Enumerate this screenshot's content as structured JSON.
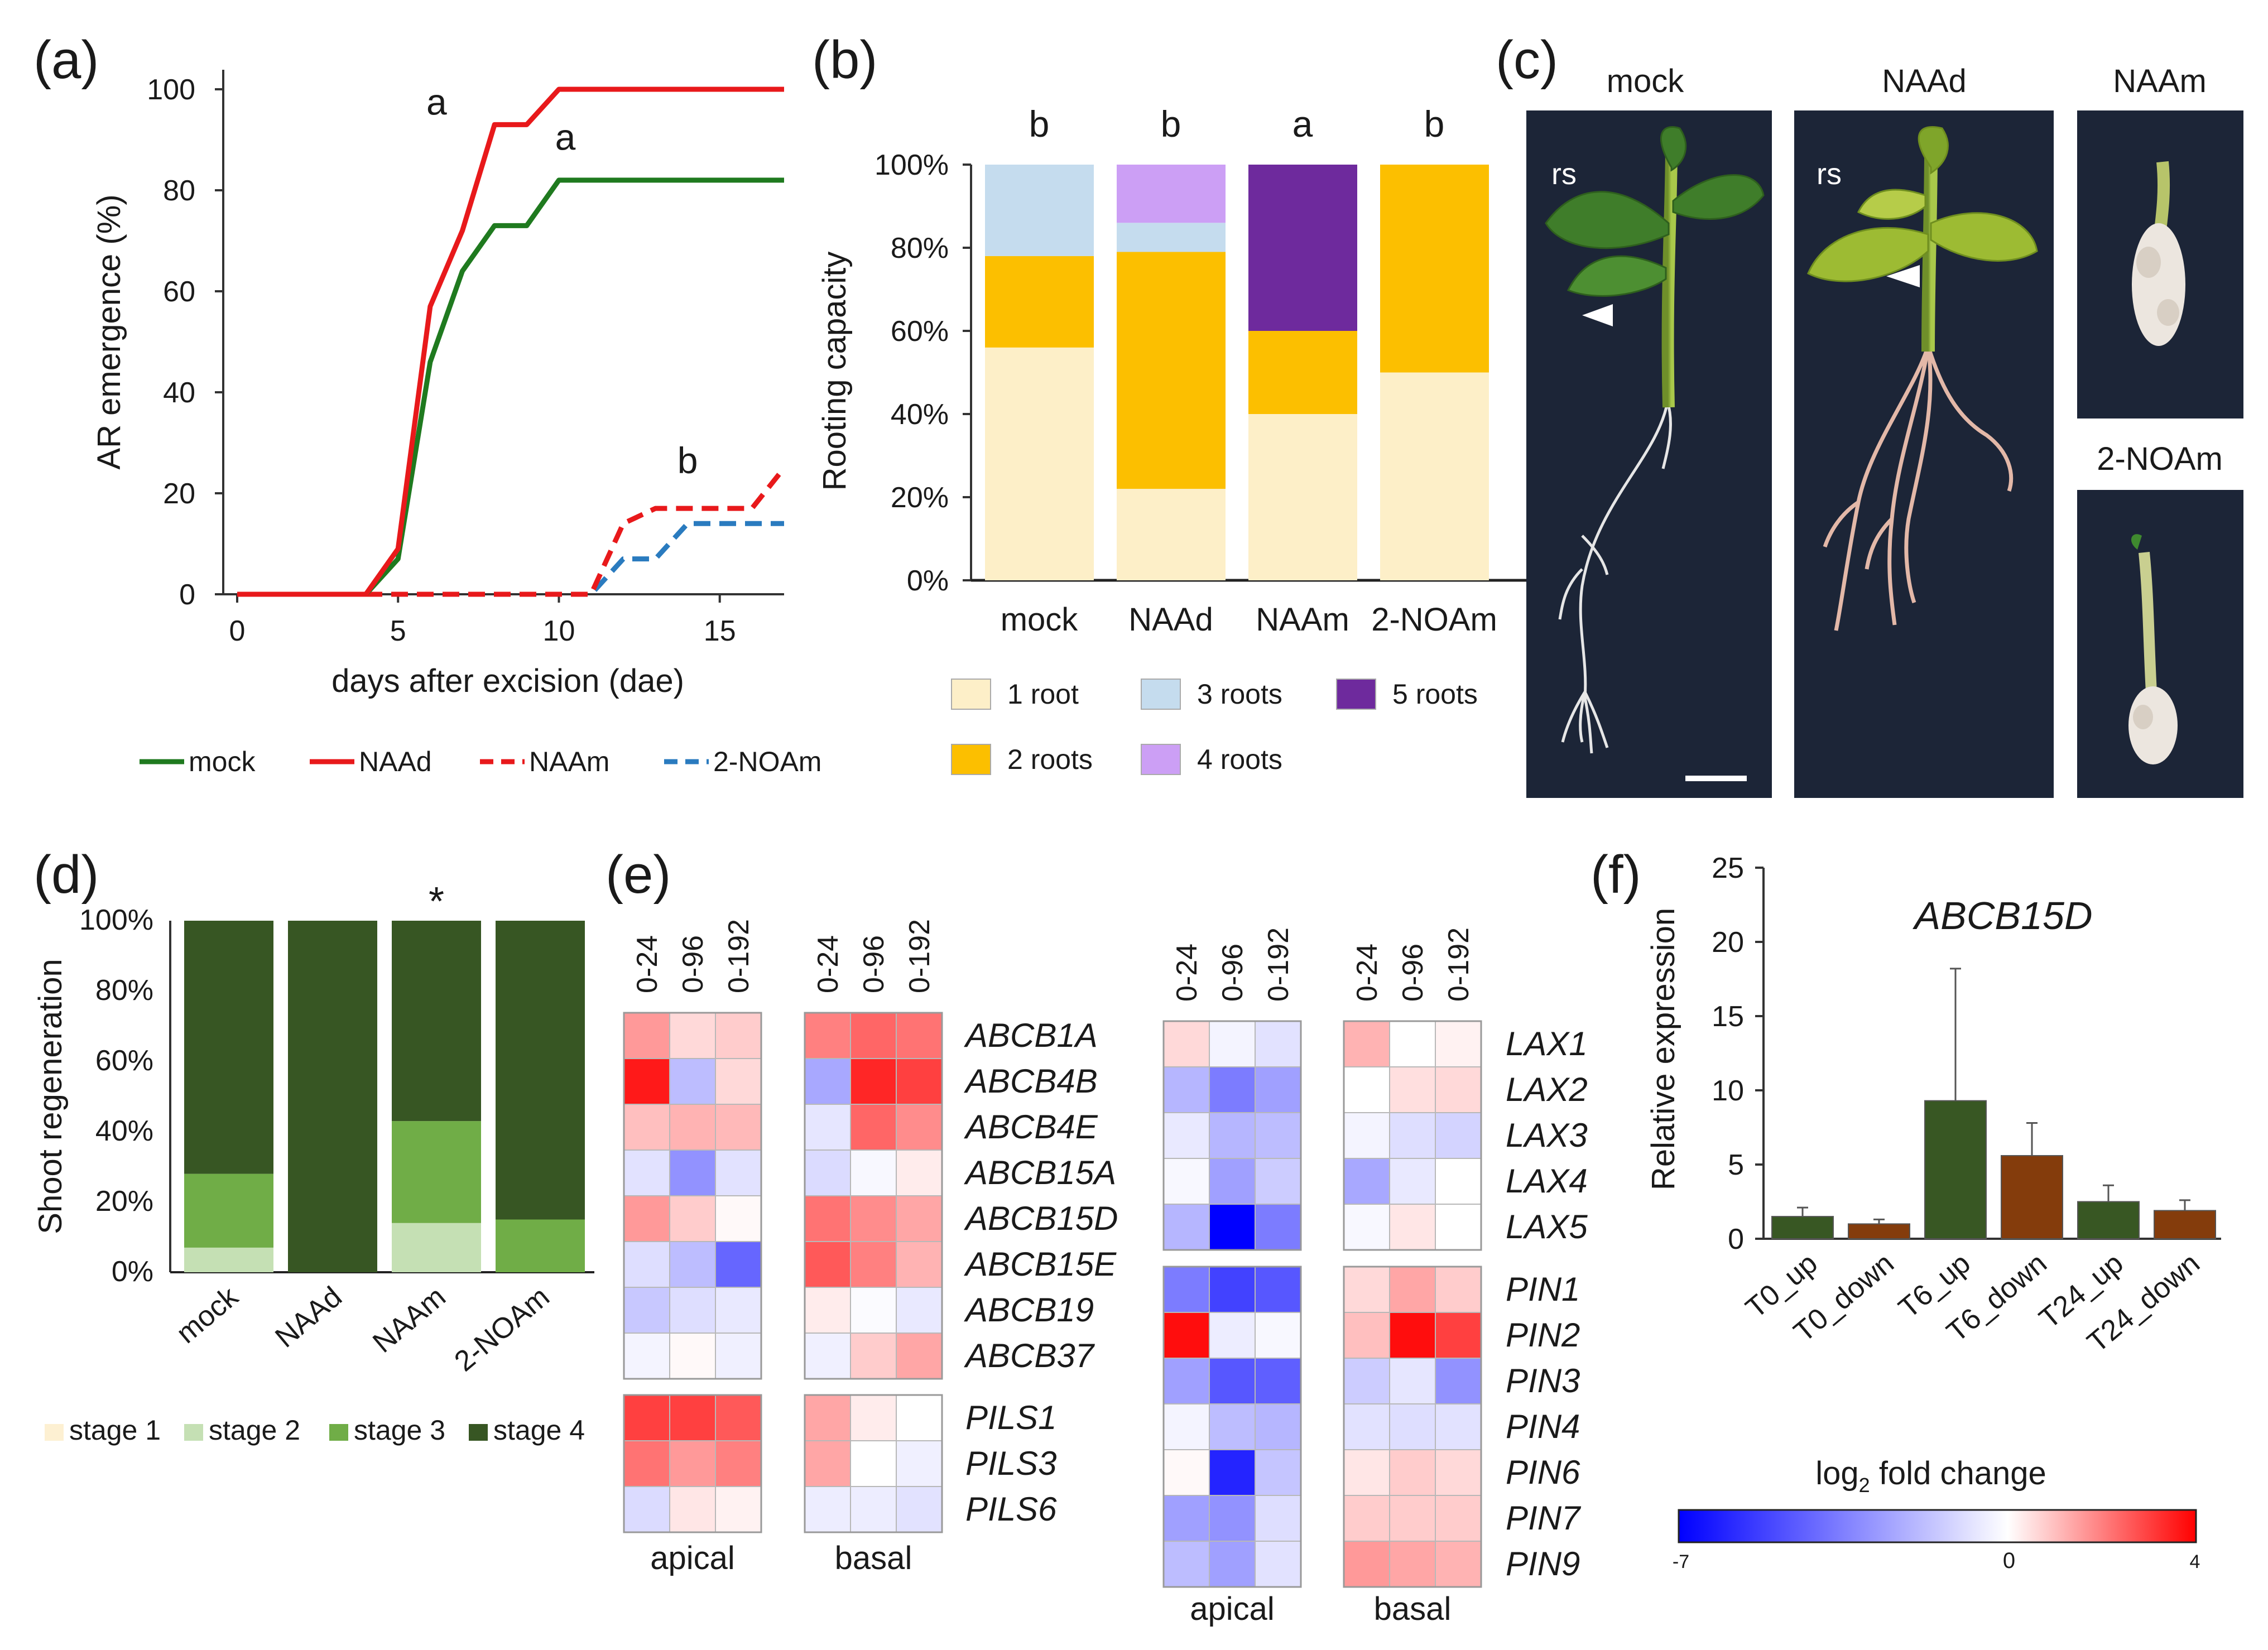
{
  "panels": {
    "a": {
      "label": "(a)",
      "chart_data": {
        "type": "line",
        "xlabel": "days after excision (dae)",
        "ylabel": "AR emergence (%)",
        "xlim": [
          0,
          17
        ],
        "ylim": [
          0,
          100
        ],
        "xticks": [
          "0",
          "5",
          "10",
          "15"
        ],
        "yticks": [
          "0",
          "20",
          "40",
          "60",
          "80",
          "100"
        ],
        "x": [
          0,
          1,
          2,
          3,
          4,
          5,
          6,
          7,
          8,
          9,
          10,
          11,
          12,
          13,
          14,
          15,
          16,
          17
        ],
        "series": [
          {
            "name": "mock",
            "color": "#1f7a1f",
            "dash": false,
            "values": [
              0,
              0,
              0,
              0,
              0,
              7,
              46,
              64,
              73,
              73,
              82,
              82,
              82,
              82,
              82,
              82,
              82,
              82
            ]
          },
          {
            "name": "NAAd",
            "color": "#e8191b",
            "dash": false,
            "values": [
              0,
              0,
              0,
              0,
              0,
              9,
              57,
              72,
              93,
              93,
              100,
              100,
              100,
              100,
              100,
              100,
              100,
              100
            ]
          },
          {
            "name": "NAAm",
            "color": "#e8191b",
            "dash": true,
            "values": [
              0,
              0,
              0,
              0,
              0,
              0,
              0,
              0,
              0,
              0,
              0,
              0,
              14,
              17,
              17,
              17,
              17,
              25
            ]
          },
          {
            "name": "2-NOAm",
            "color": "#2a7bbf",
            "dash": true,
            "values": [
              0,
              0,
              0,
              0,
              0,
              0,
              0,
              0,
              0,
              0,
              0,
              0,
              7,
              7,
              14,
              14,
              14,
              14
            ]
          }
        ],
        "annotations": [
          {
            "text": "a",
            "x": 6.2,
            "y": 95
          },
          {
            "text": "a",
            "x": 10.2,
            "y": 88
          },
          {
            "text": "b",
            "x": 14,
            "y": 24
          }
        ]
      }
    },
    "b": {
      "label": "(b)",
      "chart_data": {
        "type": "bar",
        "stacked": true,
        "ylabel": "Rooting capacity",
        "categories": [
          "mock",
          "NAAd",
          "NAAm",
          "2-NOAm"
        ],
        "yticks": [
          "0%",
          "20%",
          "40%",
          "60%",
          "80%",
          "100%"
        ],
        "ylim": [
          0,
          100
        ],
        "letters": [
          "b",
          "b",
          "a",
          "b"
        ],
        "series": [
          {
            "name": "1 root",
            "color": "#fdefc8",
            "values": [
              56,
              22,
              40,
              50
            ]
          },
          {
            "name": "2 roots",
            "color": "#fcbf00",
            "values": [
              22,
              57,
              20,
              50
            ]
          },
          {
            "name": "3 roots",
            "color": "#c5dcee",
            "values": [
              22,
              7,
              0,
              0
            ]
          },
          {
            "name": "4 roots",
            "color": "#cc9ff5",
            "values": [
              0,
              14,
              0,
              0
            ]
          },
          {
            "name": "5 roots",
            "color": "#6e2a9d",
            "values": [
              0,
              0,
              40,
              0
            ]
          }
        ]
      }
    },
    "c": {
      "label": "(c)",
      "photo_titles": [
        "mock",
        "NAAd",
        "NAAm",
        "2-NOAm"
      ],
      "rs_labels": [
        "rs",
        "rs"
      ]
    },
    "d": {
      "label": "(d)",
      "chart_data": {
        "type": "bar",
        "stacked": true,
        "ylabel": "Shoot regeneration",
        "categories": [
          "mock",
          "NAAd",
          "NAAm",
          "2-NOAm"
        ],
        "yticks": [
          "0%",
          "20%",
          "40%",
          "60%",
          "80%",
          "100%"
        ],
        "ylim": [
          0,
          100
        ],
        "marks": [
          "",
          "",
          "*",
          ""
        ],
        "series": [
          {
            "name": "stage 1",
            "color": "#fdf0d2",
            "values": [
              0,
              0,
              0,
              0
            ]
          },
          {
            "name": "stage 2",
            "color": "#c5e0b4",
            "values": [
              7,
              0,
              14,
              0
            ]
          },
          {
            "name": "stage 3",
            "color": "#70ad47",
            "values": [
              21,
              0,
              29,
              15
            ]
          },
          {
            "name": "stage 4",
            "color": "#375623",
            "values": [
              72,
              100,
              57,
              85
            ]
          }
        ]
      }
    },
    "e": {
      "label": "(e)",
      "time_labels": [
        "0-24",
        "0-96",
        "0-192"
      ],
      "tissue_labels": [
        "apical",
        "basal"
      ],
      "chart_data": {
        "type": "heatmap",
        "scale_min": -7,
        "scale_max": 4,
        "columns": [
          "0-24",
          "0-96",
          "0-192"
        ],
        "left_groups": [
          {
            "genes": [
              "ABCB1A",
              "ABCB4B",
              "ABCB4E",
              "ABCB15A",
              "ABCB15D",
              "ABCB15E",
              "ABCB19",
              "ABCB37"
            ],
            "apical": [
              [
                1.6,
                0.6,
                0.8
              ],
              [
                3.6,
                -1.8,
                0.6
              ],
              [
                1.0,
                1.2,
                1.1
              ],
              [
                -0.8,
                -3.0,
                -0.8
              ],
              [
                1.6,
                0.8,
                0.1
              ],
              [
                -0.9,
                -1.8,
                -4.2
              ],
              [
                -1.5,
                -0.9,
                -0.6
              ],
              [
                -0.3,
                0.1,
                -0.4
              ]
            ],
            "basal": [
              [
                2.0,
                2.4,
                2.2
              ],
              [
                -2.4,
                3.4,
                3.0
              ],
              [
                -0.7,
                2.4,
                1.8
              ],
              [
                -1.0,
                -0.2,
                0.3
              ],
              [
                2.2,
                1.8,
                1.4
              ],
              [
                2.6,
                2.0,
                1.2
              ],
              [
                0.3,
                -0.1,
                -0.6
              ],
              [
                -0.4,
                0.8,
                1.4
              ]
            ]
          },
          {
            "genes": [
              "PILS1",
              "PILS3",
              "PILS6"
            ],
            "apical": [
              [
                3.0,
                3.0,
                2.6
              ],
              [
                2.2,
                1.6,
                2.0
              ],
              [
                -1.0,
                0.4,
                0.2
              ]
            ],
            "basal": [
              [
                1.4,
                0.3,
                0.0
              ],
              [
                1.4,
                0.0,
                -0.4
              ],
              [
                -0.5,
                -0.5,
                -0.8
              ]
            ]
          }
        ],
        "right_groups": [
          {
            "genes": [
              "LAX1",
              "LAX2",
              "LAX3",
              "LAX4",
              "LAX5"
            ],
            "apical": [
              [
                0.6,
                -0.3,
                -0.8
              ],
              [
                -2.0,
                -3.6,
                -2.6
              ],
              [
                -0.6,
                -2.0,
                -1.8
              ],
              [
                -0.2,
                -2.6,
                -1.4
              ],
              [
                -2.0,
                -7.0,
                -3.6
              ]
            ],
            "basal": [
              [
                1.2,
                0.0,
                0.2
              ],
              [
                0.0,
                0.5,
                0.6
              ],
              [
                -0.3,
                -0.9,
                -1.2
              ],
              [
                -2.4,
                -0.6,
                0.0
              ],
              [
                -0.2,
                0.4,
                0.0
              ]
            ]
          },
          {
            "genes": [
              "PIN1",
              "PIN2",
              "PIN3",
              "PIN4",
              "PIN6",
              "PIN7",
              "PIN9"
            ],
            "apical": [
              [
                -3.6,
                -5.2,
                -4.6
              ],
              [
                3.8,
                -0.5,
                -0.2
              ],
              [
                -2.6,
                -4.6,
                -4.4
              ],
              [
                -0.3,
                -1.8,
                -2.0
              ],
              [
                0.1,
                -6.0,
                -1.6
              ],
              [
                -2.6,
                -3.0,
                -0.9
              ],
              [
                -1.8,
                -2.6,
                -0.8
              ]
            ],
            "basal": [
              [
                0.6,
                1.4,
                0.8
              ],
              [
                1.0,
                3.8,
                3.0
              ],
              [
                -1.4,
                -0.7,
                -3.0
              ],
              [
                -0.8,
                -0.9,
                -0.8
              ],
              [
                0.4,
                0.8,
                0.6
              ],
              [
                0.8,
                0.8,
                0.8
              ],
              [
                1.6,
                1.4,
                1.2
              ]
            ]
          }
        ]
      }
    },
    "f": {
      "label": "(f)",
      "chart_data": {
        "type": "bar",
        "title": "ABCB15D",
        "ylabel": "Relative expression",
        "categories": [
          "T0_up",
          "T0_down",
          "T6_up",
          "T6_down",
          "T24_up",
          "T24_down"
        ],
        "values": [
          1.5,
          1.0,
          9.3,
          5.6,
          2.5,
          1.9
        ],
        "errors": [
          0.6,
          0.3,
          8.9,
          2.2,
          1.1,
          0.7
        ],
        "colors": [
          "#385723",
          "#843c0c",
          "#385723",
          "#843c0c",
          "#385723",
          "#843c0c"
        ],
        "yticks": [
          "0",
          "5",
          "10",
          "15",
          "20",
          "25"
        ],
        "ylim": [
          0,
          25
        ]
      }
    }
  },
  "colorbar": {
    "title_main": "log",
    "title_sub": "2",
    "title_rest": " fold change",
    "min_label": "-7",
    "mid_label": "0",
    "max_label": "4"
  }
}
